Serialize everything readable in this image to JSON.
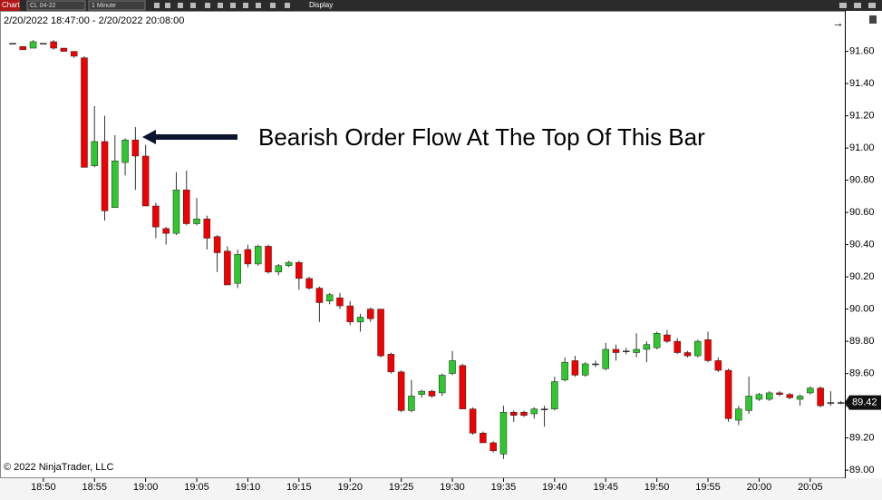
{
  "toolbar": {
    "tab": "Chart",
    "instrument": "CL 04-22",
    "interval": "1 Minute",
    "menu": "Display"
  },
  "chart_data": {
    "type": "candlestick",
    "title": "2/20/2022 18:47:00 - 2/20/2022 20:08:00",
    "annotation": "Bearish Order Flow At The Top Of This Bar",
    "footer": "© 2022 NinjaTrader, LLC",
    "up_color": "#2ec82e",
    "down_color": "#f00000",
    "x": [
      "18:47",
      "18:48",
      "18:49",
      "18:50",
      "18:51",
      "18:52",
      "18:53",
      "18:54",
      "18:55",
      "18:56",
      "18:57",
      "18:58",
      "18:59",
      "19:00",
      "19:01",
      "19:02",
      "19:03",
      "19:04",
      "19:05",
      "19:06",
      "19:07",
      "19:08",
      "19:09",
      "19:10",
      "19:11",
      "19:12",
      "19:13",
      "19:14",
      "19:15",
      "19:16",
      "19:17",
      "19:18",
      "19:19",
      "19:20",
      "19:21",
      "19:22",
      "19:23",
      "19:24",
      "19:25",
      "19:26",
      "19:27",
      "19:28",
      "19:29",
      "19:30",
      "19:31",
      "19:32",
      "19:33",
      "19:34",
      "19:35",
      "19:36",
      "19:37",
      "19:38",
      "19:39",
      "19:40",
      "19:41",
      "19:42",
      "19:43",
      "19:44",
      "19:45",
      "19:46",
      "19:47",
      "19:48",
      "19:49",
      "19:50",
      "19:51",
      "19:52",
      "19:53",
      "19:54",
      "19:55",
      "19:56",
      "19:57",
      "19:58",
      "19:59",
      "20:00",
      "20:01",
      "20:02",
      "20:03",
      "20:04",
      "20:05",
      "20:06",
      "20:07",
      "20:08"
    ],
    "open": [
      91.65,
      91.63,
      91.62,
      91.65,
      91.66,
      91.62,
      91.6,
      91.56,
      90.89,
      91.04,
      90.63,
      90.91,
      91.05,
      90.95,
      90.64,
      90.5,
      90.47,
      90.74,
      90.53,
      90.56,
      90.45,
      90.36,
      90.16,
      90.37,
      90.28,
      90.39,
      90.23,
      90.27,
      90.29,
      90.19,
      90.13,
      90.05,
      90.07,
      90.02,
      89.92,
      90.0,
      90.0,
      89.72,
      89.61,
      89.37,
      89.47,
      89.49,
      89.48,
      89.6,
      89.65,
      89.38,
      89.23,
      89.17,
      89.1,
      89.36,
      89.36,
      89.35,
      89.38,
      89.38,
      89.56,
      89.68,
      89.59,
      89.66,
      89.63,
      89.75,
      89.74,
      89.73,
      89.75,
      89.76,
      89.84,
      89.8,
      89.73,
      89.71,
      89.81,
      89.68,
      89.62,
      89.31,
      89.37,
      89.44,
      89.44,
      89.48,
      89.47,
      89.44,
      89.48,
      89.51,
      89.42,
      89.42
    ],
    "high": [
      91.65,
      91.63,
      91.67,
      91.65,
      91.67,
      91.62,
      91.6,
      91.57,
      91.26,
      91.2,
      91.08,
      91.06,
      91.13,
      91.02,
      90.66,
      90.51,
      90.85,
      90.86,
      90.69,
      90.58,
      90.46,
      90.39,
      90.37,
      90.4,
      90.4,
      90.4,
      90.28,
      90.3,
      90.3,
      90.2,
      90.14,
      90.1,
      90.1,
      90.05,
      89.97,
      90.01,
      90.0,
      89.73,
      89.62,
      89.56,
      89.5,
      89.5,
      89.6,
      89.74,
      89.66,
      89.39,
      89.24,
      89.18,
      89.4,
      89.37,
      89.37,
      89.39,
      89.4,
      89.58,
      89.7,
      89.71,
      89.67,
      89.68,
      89.79,
      89.78,
      89.76,
      89.85,
      89.8,
      89.86,
      89.87,
      89.82,
      89.74,
      89.81,
      89.86,
      89.7,
      89.63,
      89.4,
      89.58,
      89.48,
      89.49,
      89.49,
      89.48,
      89.47,
      89.52,
      89.52,
      89.49,
      89.43
    ],
    "low": [
      91.65,
      91.61,
      91.62,
      91.65,
      91.61,
      91.6,
      91.56,
      90.88,
      90.88,
      90.55,
      90.63,
      90.83,
      90.74,
      90.64,
      90.44,
      90.4,
      90.46,
      90.52,
      90.52,
      90.37,
      90.23,
      90.15,
      90.13,
      90.26,
      90.27,
      90.22,
      90.21,
      90.26,
      90.12,
      90.12,
      89.92,
      90.03,
      90.0,
      89.9,
      89.86,
      89.92,
      89.7,
      89.6,
      89.36,
      89.36,
      89.45,
      89.45,
      89.46,
      89.59,
      89.38,
      89.22,
      89.17,
      89.11,
      89.07,
      89.3,
      89.33,
      89.32,
      89.27,
      89.37,
      89.55,
      89.58,
      89.58,
      89.64,
      89.62,
      89.68,
      89.72,
      89.7,
      89.67,
      89.75,
      89.79,
      89.72,
      89.7,
      89.7,
      89.67,
      89.61,
      89.3,
      89.28,
      89.35,
      89.43,
      89.43,
      89.46,
      89.44,
      89.4,
      89.47,
      89.39,
      89.4,
      89.41
    ],
    "close": [
      91.65,
      91.61,
      91.66,
      91.65,
      91.62,
      91.6,
      91.57,
      90.88,
      91.04,
      90.61,
      90.92,
      91.05,
      90.95,
      90.64,
      90.51,
      90.47,
      90.74,
      90.53,
      90.56,
      90.44,
      90.35,
      90.15,
      90.34,
      90.28,
      90.39,
      90.23,
      90.27,
      90.29,
      90.19,
      90.13,
      90.04,
      90.09,
      90.02,
      89.92,
      89.95,
      89.94,
      89.71,
      89.61,
      89.37,
      89.46,
      89.49,
      89.46,
      89.59,
      89.68,
      89.38,
      89.23,
      89.17,
      89.12,
      89.36,
      89.34,
      89.34,
      89.38,
      89.38,
      89.55,
      89.67,
      89.59,
      89.66,
      89.66,
      89.75,
      89.73,
      89.74,
      89.75,
      89.78,
      89.85,
      89.8,
      89.73,
      89.71,
      89.8,
      89.68,
      89.62,
      89.32,
      89.38,
      89.46,
      89.47,
      89.48,
      89.47,
      89.45,
      89.46,
      89.51,
      89.4,
      89.42,
      89.42
    ],
    "last_price": 89.42,
    "xticks": [
      "18:50",
      "18:55",
      "19:00",
      "19:05",
      "19:10",
      "19:15",
      "19:20",
      "19:25",
      "19:30",
      "19:35",
      "19:40",
      "19:45",
      "19:50",
      "19:55",
      "20:00",
      "20:05"
    ],
    "ylim": [
      88.95,
      91.84
    ],
    "yticks": [
      {
        "value": 89.0,
        "label": "89.00"
      },
      {
        "value": 89.2,
        "label": "89.20"
      },
      {
        "value": 89.4,
        "label": "89.40"
      },
      {
        "value": 89.6,
        "label": "89.60"
      },
      {
        "value": 89.8,
        "label": "89.80"
      },
      {
        "value": 90.0,
        "label": "90.00"
      },
      {
        "value": 90.2,
        "label": "90.20"
      },
      {
        "value": 90.4,
        "label": "90.40"
      },
      {
        "value": 90.6,
        "label": "90.60"
      },
      {
        "value": 90.8,
        "label": "90.80"
      },
      {
        "value": 91.0,
        "label": "91.00"
      },
      {
        "value": 91.2,
        "label": "91.20"
      },
      {
        "value": 91.4,
        "label": "91.40"
      },
      {
        "value": 91.6,
        "label": "91.60"
      }
    ]
  }
}
